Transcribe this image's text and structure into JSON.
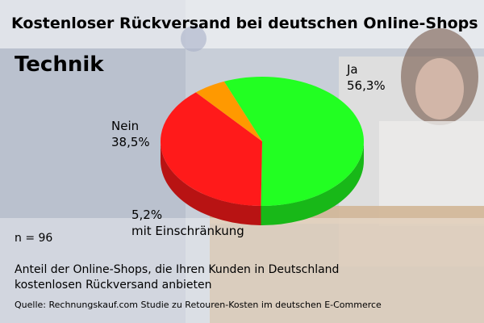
{
  "header": {
    "title": "Kostenloser Rückversand bei deutschen Online-Shops",
    "subtitle": "Technik"
  },
  "chart_data": {
    "type": "pie",
    "categories": [
      "Ja",
      "Nein",
      "mit Einschränkung"
    ],
    "values": [
      56.3,
      38.5,
      5.2
    ],
    "value_labels": [
      "56,3%",
      "38,5%",
      "5,2%"
    ],
    "colors": [
      "#22ff22",
      "#ff1a1a",
      "#ff9900"
    ],
    "style": "3d"
  },
  "labels": {
    "ja_name": "Ja",
    "ja_value": "56,3%",
    "nein_name": "Nein",
    "nein_value": "38,5%",
    "mit_value": "5,2%",
    "mit_name": "mit Einschränkung"
  },
  "footer": {
    "n": "n = 96",
    "desc_line1": "Anteil der Online-Shops, die Ihren Kunden in Deutschland",
    "desc_line2": "kostenlosen Rückversand anbieten",
    "source": "Quelle: Rechnungskauf.com Studie zu Retouren-Kosten im deutschen E-Commerce"
  }
}
